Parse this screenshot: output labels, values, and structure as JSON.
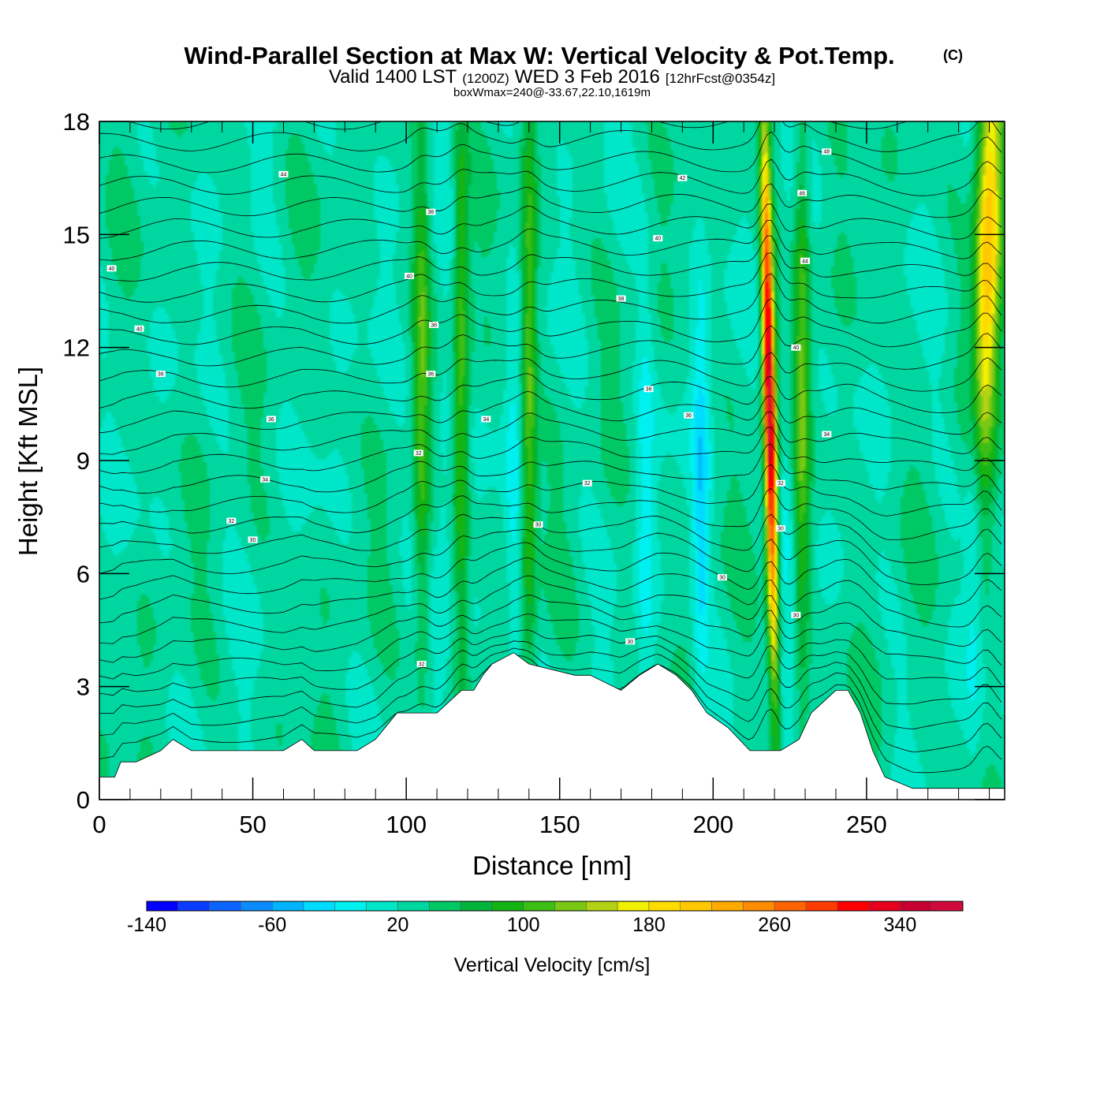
{
  "chart_data": {
    "type": "heatmap",
    "title": "Wind-Parallel Section at Max W: Vertical Velocity & Pot.Temp.",
    "title_mark": "(C)",
    "subtitle_parts": [
      "Valid 1400 LST",
      "(1200Z)",
      "WED 3 Feb 2016",
      "[12hrFcst@0354z]"
    ],
    "subtitle2": "boxWmax=240@-33.67,22.10,1619m",
    "xlabel": "Distance [nm]",
    "ylabel": "Height [Kft MSL]",
    "xlim": [
      0,
      295
    ],
    "ylim": [
      0,
      18
    ],
    "x_ticks": [
      "0",
      "50",
      "100",
      "150",
      "200",
      "250"
    ],
    "x_tick_values": [
      0,
      50,
      100,
      150,
      200,
      250
    ],
    "y_ticks": [
      "0",
      "3",
      "6",
      "9",
      "12",
      "15",
      "18"
    ],
    "y_tick_values": [
      0,
      3,
      6,
      9,
      12,
      15,
      18
    ],
    "colorbar": {
      "title": "Vertical Velocity [cm/s]",
      "min": -140,
      "max": 380,
      "step": 20,
      "tick_labels": [
        "-140",
        "-60",
        "20",
        "100",
        "180",
        "260",
        "340"
      ],
      "tick_values": [
        -140,
        -60,
        20,
        100,
        180,
        260,
        340
      ],
      "colors": [
        "#0000ff",
        "#0a3cff",
        "#0a64ff",
        "#0a8cff",
        "#00b4ff",
        "#00dcff",
        "#00f0f0",
        "#00e6c8",
        "#00d7a0",
        "#00c864",
        "#00b43c",
        "#14b414",
        "#3cbe14",
        "#78c814",
        "#b4d214",
        "#f0f000",
        "#ffdc00",
        "#ffc800",
        "#ffaa00",
        "#ff8c00",
        "#ff6400",
        "#ff3c00",
        "#ff0000",
        "#e6001e",
        "#c80032",
        "#d20a3c"
      ]
    },
    "terrain": {
      "x": [
        0,
        5,
        7,
        12,
        20,
        24,
        30,
        40,
        60,
        66,
        70,
        84,
        90,
        93,
        97,
        102,
        110,
        114,
        118,
        122,
        125,
        128,
        135,
        140,
        155,
        160,
        170,
        176,
        182,
        188,
        193,
        198,
        205,
        212,
        222,
        228,
        232,
        236,
        240,
        244,
        248,
        252,
        256,
        265,
        280,
        295
      ],
      "kft": [
        0.6,
        0.6,
        1.0,
        1.0,
        1.3,
        1.6,
        1.3,
        1.3,
        1.3,
        1.6,
        1.3,
        1.3,
        1.6,
        1.9,
        2.3,
        2.3,
        2.3,
        2.6,
        2.9,
        2.9,
        3.3,
        3.6,
        3.9,
        3.6,
        3.3,
        3.3,
        2.9,
        3.3,
        3.6,
        3.3,
        2.9,
        2.3,
        1.9,
        1.3,
        1.3,
        1.6,
        2.3,
        2.6,
        2.9,
        2.9,
        2.3,
        1.3,
        0.6,
        0.3,
        0.3,
        0.3
      ]
    },
    "updraft_cores": [
      {
        "x": 218.5,
        "peak": 345,
        "shape": "tilted"
      },
      {
        "x": 289,
        "peak": 200,
        "shape": "broad"
      },
      {
        "x": 140,
        "peak": 95,
        "shape": "narrow"
      },
      {
        "x": 118,
        "peak": 85,
        "shape": "narrow"
      },
      {
        "x": 105,
        "peak": 80,
        "shape": "narrow"
      },
      {
        "x": 229,
        "peak": 90,
        "shape": "narrow"
      }
    ],
    "downdraft_cores": [
      {
        "x": 196,
        "min": -55
      },
      {
        "x": 112,
        "min": -25
      },
      {
        "x": 135,
        "min": -30
      },
      {
        "x": 178,
        "min": -35
      },
      {
        "x": 285,
        "min": -40
      },
      {
        "x": 224,
        "min": -25
      }
    ],
    "contour_labels": [
      {
        "x": 4,
        "kft": 14.1,
        "text": "40"
      },
      {
        "x": 13,
        "kft": 12.5,
        "text": "40"
      },
      {
        "x": 20,
        "kft": 11.3,
        "text": "36"
      },
      {
        "x": 56,
        "kft": 10.1,
        "text": "36"
      },
      {
        "x": 54,
        "kft": 8.5,
        "text": "34"
      },
      {
        "x": 43,
        "kft": 7.4,
        "text": "32"
      },
      {
        "x": 50,
        "kft": 6.9,
        "text": "30"
      },
      {
        "x": 60,
        "kft": 16.6,
        "text": "44"
      },
      {
        "x": 108,
        "kft": 15.6,
        "text": "38"
      },
      {
        "x": 101,
        "kft": 13.9,
        "text": "40"
      },
      {
        "x": 109,
        "kft": 12.6,
        "text": "38"
      },
      {
        "x": 108,
        "kft": 11.3,
        "text": "36"
      },
      {
        "x": 126,
        "kft": 10.1,
        "text": "34"
      },
      {
        "x": 104,
        "kft": 9.2,
        "text": "32"
      },
      {
        "x": 143,
        "kft": 7.3,
        "text": "30"
      },
      {
        "x": 105,
        "kft": 3.6,
        "text": "32"
      },
      {
        "x": 190,
        "kft": 16.5,
        "text": "42"
      },
      {
        "x": 182,
        "kft": 14.9,
        "text": "40"
      },
      {
        "x": 170,
        "kft": 13.3,
        "text": "38"
      },
      {
        "x": 179,
        "kft": 10.9,
        "text": "36"
      },
      {
        "x": 192,
        "kft": 10.2,
        "text": "36"
      },
      {
        "x": 159,
        "kft": 8.4,
        "text": "32"
      },
      {
        "x": 173,
        "kft": 4.2,
        "text": "30"
      },
      {
        "x": 203,
        "kft": 5.9,
        "text": "30"
      },
      {
        "x": 237,
        "kft": 17.2,
        "text": "48"
      },
      {
        "x": 229,
        "kft": 16.1,
        "text": "46"
      },
      {
        "x": 230,
        "kft": 14.3,
        "text": "44"
      },
      {
        "x": 227,
        "kft": 12.0,
        "text": "40"
      },
      {
        "x": 237,
        "kft": 9.7,
        "text": "34"
      },
      {
        "x": 222,
        "kft": 8.4,
        "text": "32"
      },
      {
        "x": 222,
        "kft": 7.2,
        "text": "30"
      },
      {
        "x": 227,
        "kft": 4.9,
        "text": "30"
      }
    ]
  }
}
